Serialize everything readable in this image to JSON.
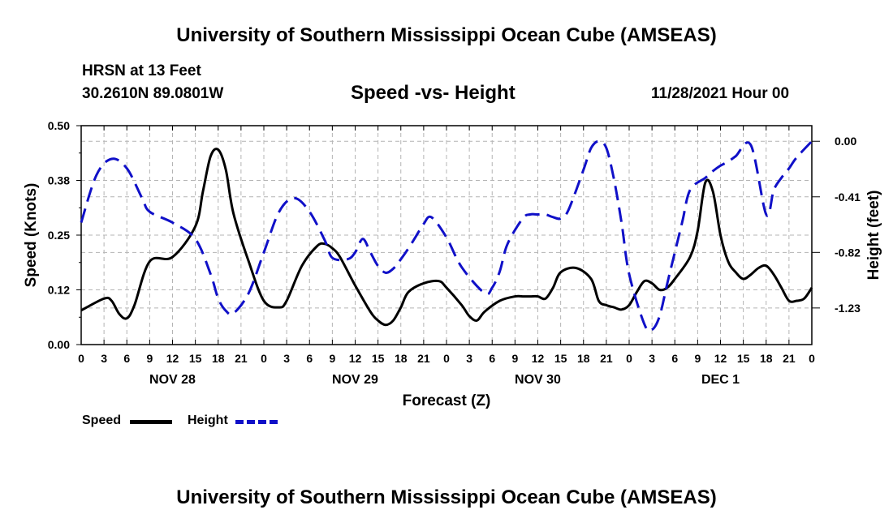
{
  "header": {
    "title": "University of Southern Mississippi Ocean Cube (AMSEAS)",
    "station": "HRSN at 13 Feet",
    "coords": "30.2610N  89.0801W",
    "subtitle": "Speed -vs- Height",
    "datetime": "11/28/2021 Hour 00",
    "footer_title": "University of Southern Mississippi Ocean Cube (AMSEAS)"
  },
  "legend": {
    "speed_label": "Speed",
    "height_label": "Height"
  },
  "colors": {
    "speed": "#000000",
    "height": "#1010c8",
    "grid": "#b4b4b4"
  },
  "chart_data": {
    "type": "line",
    "xlabel": "Forecast (Z)",
    "x_range": [
      0,
      96
    ],
    "x_tick_labels": [
      "0",
      "3",
      "6",
      "9",
      "12",
      "15",
      "18",
      "21",
      "0",
      "3",
      "6",
      "9",
      "12",
      "15",
      "18",
      "21",
      "0",
      "3",
      "6",
      "9",
      "12",
      "15",
      "18",
      "21",
      "0",
      "3",
      "6",
      "9",
      "12",
      "15",
      "18",
      "21",
      "0"
    ],
    "day_labels": [
      {
        "label": "NOV 28",
        "hour": 12
      },
      {
        "label": "NOV 29",
        "hour": 36
      },
      {
        "label": "NOV 30",
        "hour": 60
      },
      {
        "label": "DEC 1",
        "hour": 84
      }
    ],
    "left_axis": {
      "label": "Speed (Knots)",
      "ylim": [
        0,
        0.5
      ],
      "ticks": [
        "0.00",
        "0.12",
        "0.25",
        "0.38",
        "0.50"
      ],
      "tick_values": [
        0,
        0.125,
        0.25,
        0.375,
        0.5
      ]
    },
    "right_axis": {
      "label": "Height (feet)",
      "ylim": [
        -1.5,
        0.115
      ],
      "ticks": [
        "0.00",
        "-0.41",
        "-0.82",
        "-1.23"
      ],
      "tick_values": [
        0,
        -0.41,
        -0.82,
        -1.23
      ]
    },
    "series": [
      {
        "name": "Speed",
        "axis": "left",
        "style": "solid",
        "x": [
          0,
          3,
          4,
          5,
          6,
          7,
          9,
          12,
          15,
          16,
          17,
          18,
          19,
          20,
          22,
          24,
          26,
          27,
          29,
          31,
          32,
          33,
          34,
          36,
          38,
          39,
          40,
          41,
          42,
          43,
          45,
          47,
          48,
          50,
          51,
          52,
          53,
          55,
          57,
          58,
          59,
          60,
          61,
          62,
          63,
          65,
          67,
          68,
          69,
          70,
          71,
          72,
          73,
          74,
          75,
          76,
          77,
          78,
          80,
          81,
          82,
          83,
          84,
          85,
          86,
          87,
          88,
          89,
          90,
          91,
          92,
          93,
          94,
          95,
          96
        ],
        "values": [
          0.078,
          0.105,
          0.1,
          0.07,
          0.06,
          0.09,
          0.19,
          0.2,
          0.27,
          0.35,
          0.43,
          0.445,
          0.4,
          0.3,
          0.19,
          0.1,
          0.085,
          0.1,
          0.18,
          0.225,
          0.23,
          0.22,
          0.2,
          0.135,
          0.075,
          0.055,
          0.045,
          0.055,
          0.085,
          0.12,
          0.14,
          0.145,
          0.13,
          0.09,
          0.065,
          0.055,
          0.075,
          0.1,
          0.11,
          0.11,
          0.11,
          0.11,
          0.105,
          0.13,
          0.165,
          0.175,
          0.15,
          0.1,
          0.09,
          0.085,
          0.08,
          0.09,
          0.12,
          0.145,
          0.14,
          0.125,
          0.13,
          0.15,
          0.2,
          0.26,
          0.37,
          0.35,
          0.25,
          0.19,
          0.165,
          0.15,
          0.16,
          0.175,
          0.18,
          0.16,
          0.13,
          0.1,
          0.1,
          0.105,
          0.13
        ]
      },
      {
        "name": "Height",
        "axis": "right",
        "style": "dashed",
        "x": [
          0,
          2,
          4,
          6,
          8,
          9,
          12,
          15,
          17,
          18,
          19,
          20,
          22,
          24,
          26,
          28,
          30,
          32,
          33,
          35,
          36,
          37,
          38,
          39,
          40,
          41,
          42,
          43,
          44,
          45,
          46,
          48,
          50,
          53,
          54,
          55,
          56,
          58,
          59,
          60,
          61,
          62,
          63,
          64,
          66,
          67,
          68,
          69,
          70,
          71,
          72,
          74,
          75,
          76,
          77,
          78,
          79,
          80,
          82,
          83,
          84,
          85,
          86,
          88,
          90,
          91,
          92,
          93,
          94,
          96
        ],
        "values": [
          -0.6,
          -0.25,
          -0.13,
          -0.2,
          -0.42,
          -0.52,
          -0.6,
          -0.72,
          -0.98,
          -1.16,
          -1.25,
          -1.27,
          -1.12,
          -0.82,
          -0.52,
          -0.42,
          -0.52,
          -0.73,
          -0.86,
          -0.87,
          -0.82,
          -0.72,
          -0.82,
          -0.92,
          -0.97,
          -0.94,
          -0.87,
          -0.79,
          -0.7,
          -0.61,
          -0.56,
          -0.71,
          -0.93,
          -1.12,
          -1.08,
          -0.96,
          -0.76,
          -0.57,
          -0.54,
          -0.54,
          -0.54,
          -0.56,
          -0.57,
          -0.51,
          -0.21,
          -0.05,
          0.0,
          -0.05,
          -0.28,
          -0.6,
          -0.98,
          -1.35,
          -1.39,
          -1.29,
          -1.05,
          -0.82,
          -0.59,
          -0.36,
          -0.27,
          -0.22,
          -0.18,
          -0.15,
          -0.11,
          -0.03,
          -0.54,
          -0.36,
          -0.27,
          -0.2,
          -0.12,
          0.0
        ]
      }
    ]
  }
}
